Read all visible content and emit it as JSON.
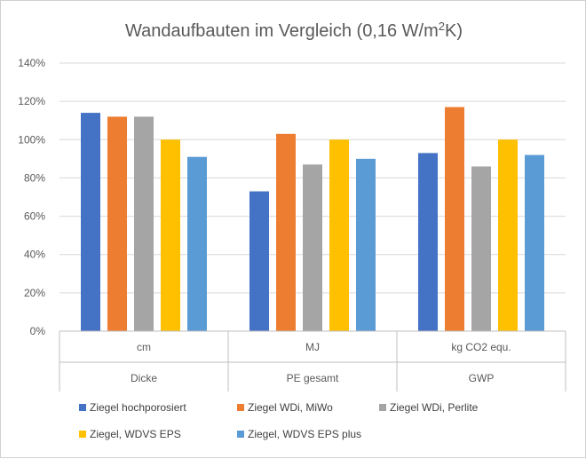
{
  "chart_data": {
    "type": "bar",
    "title": {
      "main": "Wandaufbauten im Vergleich (0,16 W/m",
      "sup": "2",
      "end": "K)"
    },
    "categories": [
      {
        "unit": "cm",
        "group": "Dicke"
      },
      {
        "unit": "MJ",
        "group": "PE gesamt"
      },
      {
        "unit": "kg CO2 equ.",
        "group": "GWP"
      }
    ],
    "series": [
      {
        "name": "Ziegel hochporosiert",
        "color": "#4472C4",
        "values": [
          114,
          73,
          93
        ]
      },
      {
        "name": "Ziegel WDi, MiWo",
        "color": "#ED7D31",
        "values": [
          112,
          103,
          117
        ]
      },
      {
        "name": "Ziegel WDi, Perlite",
        "color": "#A5A5A5",
        "values": [
          112,
          87,
          86
        ]
      },
      {
        "name": "Ziegel, WDVS EPS",
        "color": "#FFC000",
        "values": [
          100,
          100,
          100
        ]
      },
      {
        "name": "Ziegel, WDVS EPS plus",
        "color": "#5B9BD5",
        "values": [
          91,
          90,
          92
        ]
      }
    ],
    "ylim": [
      0,
      140
    ],
    "yticks": [
      "0%",
      "20%",
      "40%",
      "60%",
      "80%",
      "100%",
      "120%",
      "140%"
    ],
    "grid": true,
    "legend_position": "bottom"
  }
}
